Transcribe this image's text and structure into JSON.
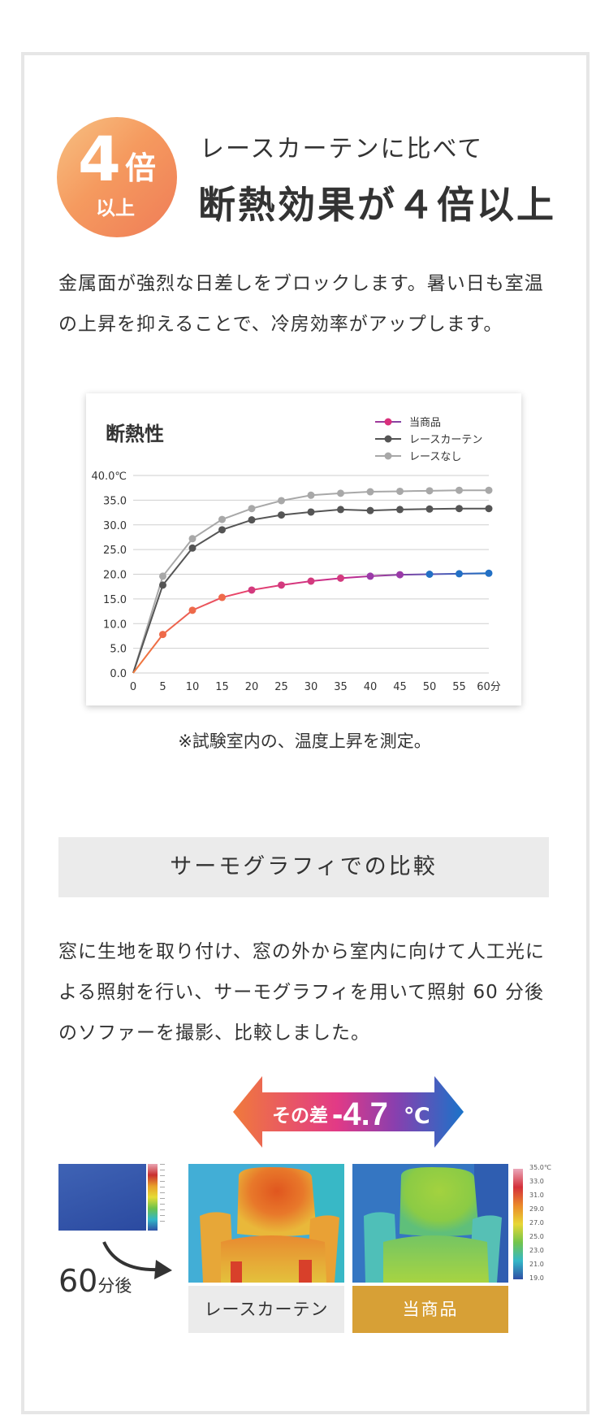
{
  "badge": {
    "number": "4",
    "kanji": "倍",
    "sub": "以上"
  },
  "heading": {
    "subtitle": "レースカーテンに比べて",
    "title": "断熱効果が４倍以上"
  },
  "intro_text": "金属面が強烈な日差しをブロックします。暑い日も室温の上昇を抑えることで、冷房効率がアップします。",
  "chart_data": {
    "type": "line",
    "title": "断熱性",
    "x": [
      0,
      5,
      10,
      15,
      20,
      25,
      30,
      35,
      40,
      45,
      50,
      55,
      60
    ],
    "x_tick_labels": [
      "0",
      "5",
      "10",
      "15",
      "20",
      "25",
      "30",
      "35",
      "40",
      "45",
      "50",
      "55",
      "60分"
    ],
    "y_tick_labels": [
      "0.0",
      "5.0",
      "10.0",
      "15.0",
      "20.0",
      "25.0",
      "30.0",
      "35.0",
      "40.0℃"
    ],
    "y_ticks": [
      0,
      5,
      10,
      15,
      20,
      25,
      30,
      35,
      40
    ],
    "xlim": [
      0,
      60
    ],
    "ylim": [
      0,
      40
    ],
    "grid": true,
    "legend_position": "top-right",
    "series": [
      {
        "name": "当商品",
        "color": "#d9307c",
        "values": [
          0,
          7.8,
          12.7,
          15.3,
          16.8,
          17.8,
          18.6,
          19.2,
          19.6,
          19.9,
          20.0,
          20.1,
          20.2
        ]
      },
      {
        "name": "レースカーテン",
        "color": "#555555",
        "values": [
          0,
          17.8,
          25.3,
          29.0,
          31.0,
          32.0,
          32.6,
          33.1,
          32.9,
          33.1,
          33.2,
          33.3,
          33.3
        ]
      },
      {
        "name": "レースなし",
        "color": "#a8a8a8",
        "values": [
          0,
          19.6,
          27.2,
          31.1,
          33.3,
          34.9,
          36.0,
          36.4,
          36.7,
          36.8,
          36.9,
          37.0,
          37.0
        ]
      }
    ]
  },
  "chart_note": "※試験室内の、温度上昇を測定。",
  "section_title": "サーモグラフィでの比較",
  "thermo_text": "窓に生地を取り付け、窓の外から室内に向けて人工光による照射を行い、サーモグラフィを用いて照射 60 分後のソファーを撮影、比較しました。",
  "difference": {
    "prefix": "その差",
    "value": "-4.7",
    "unit": "℃"
  },
  "after": {
    "number": "60",
    "unit": "分後"
  },
  "scale_labels": [
    "35.0℃",
    "33.0",
    "31.0",
    "29.0",
    "27.0",
    "25.0",
    "23.0",
    "21.0",
    "19.0"
  ],
  "labels": {
    "lace": "レースカーテン",
    "product": "当商品"
  },
  "colors": {
    "badge": "#f59a5f",
    "product": "#d7a036",
    "product_line": "#d9307c"
  },
  "icons": {
    "arrow": "curved-arrow-icon"
  }
}
